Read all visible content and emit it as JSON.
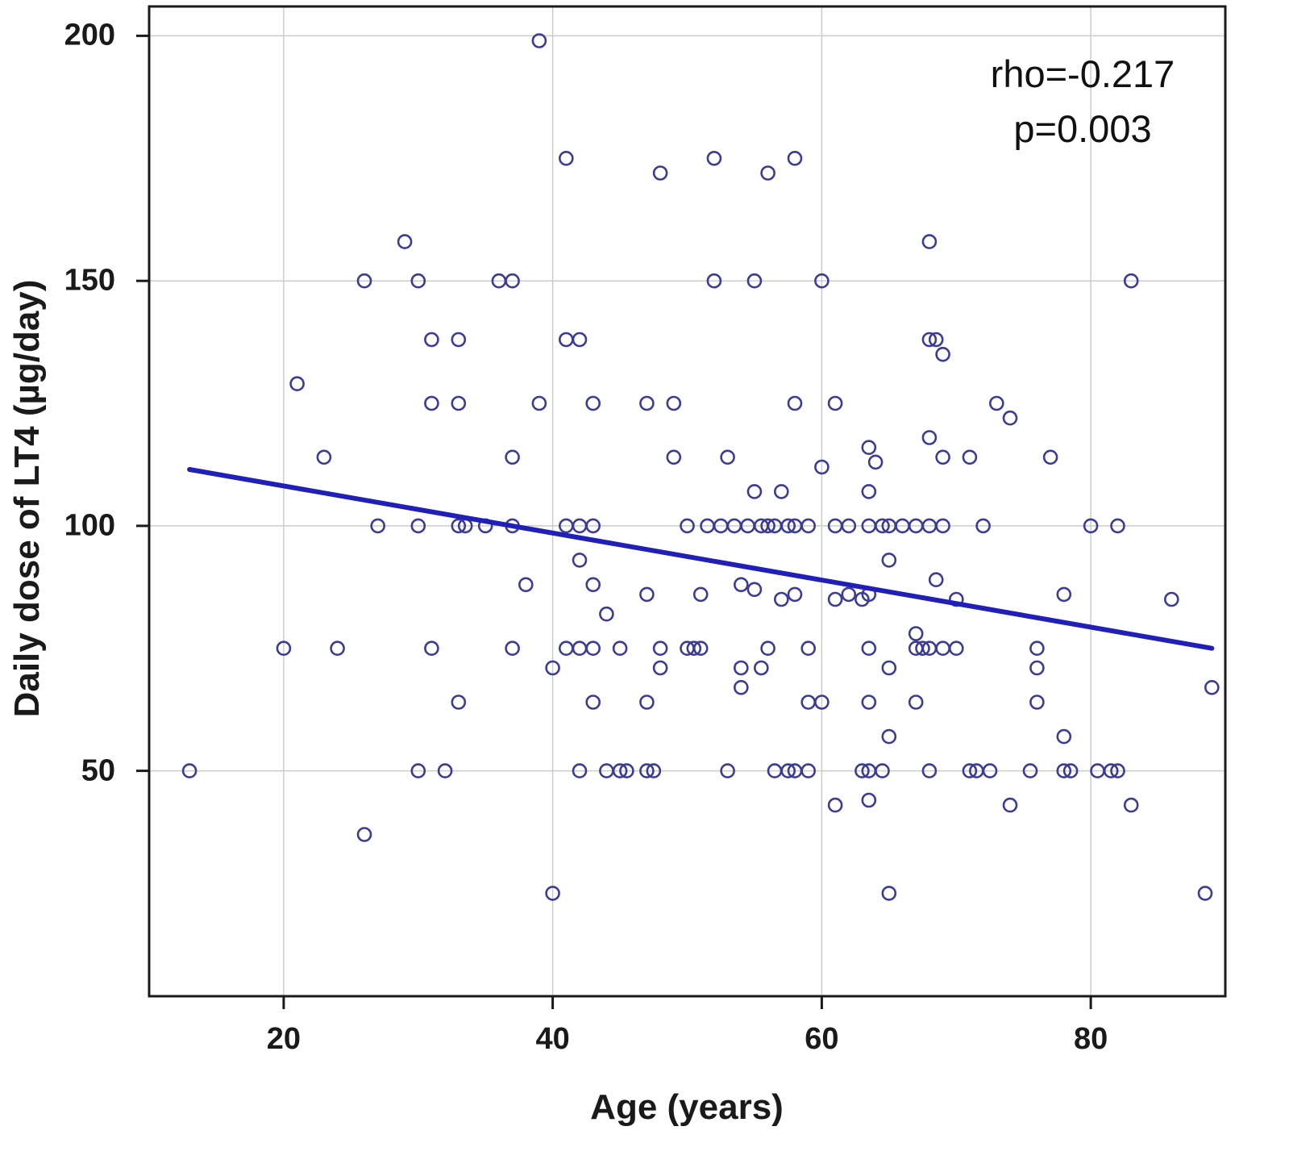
{
  "annotation": {
    "line1": "rho=-0.217",
    "line2": "p=0.003"
  },
  "chart_data": {
    "type": "scatter",
    "title": "",
    "xlabel": "Age (years)",
    "ylabel": "Daily dose of LT4 (µg/day)",
    "xlim": [
      10,
      90
    ],
    "ylim": [
      4,
      206
    ],
    "xticks": [
      20,
      40,
      60,
      80
    ],
    "yticks": [
      50,
      100,
      150,
      200
    ],
    "grid": true,
    "grid_color": "#cccccc",
    "point_color": "#3c3c94",
    "line_color": "#2020b8",
    "legend_position": "none",
    "trend": {
      "x": [
        13,
        89
      ],
      "y": [
        111.5,
        75
      ]
    },
    "points": [
      [
        39,
        199
      ],
      [
        41,
        175
      ],
      [
        52,
        175
      ],
      [
        58,
        175
      ],
      [
        48,
        172
      ],
      [
        56,
        172
      ],
      [
        29,
        158
      ],
      [
        68,
        158
      ],
      [
        26,
        150
      ],
      [
        30,
        150
      ],
      [
        36,
        150
      ],
      [
        37,
        150
      ],
      [
        52,
        150
      ],
      [
        55,
        150
      ],
      [
        60,
        150
      ],
      [
        83,
        150
      ],
      [
        31,
        138
      ],
      [
        33,
        138
      ],
      [
        41,
        138
      ],
      [
        42,
        138
      ],
      [
        68,
        138
      ],
      [
        68.5,
        138
      ],
      [
        69,
        135
      ],
      [
        21,
        129
      ],
      [
        31,
        125
      ],
      [
        33,
        125
      ],
      [
        39,
        125
      ],
      [
        43,
        125
      ],
      [
        47,
        125
      ],
      [
        49,
        125
      ],
      [
        58,
        125
      ],
      [
        61,
        125
      ],
      [
        73,
        125
      ],
      [
        74,
        122
      ],
      [
        68,
        118
      ],
      [
        23,
        114
      ],
      [
        37,
        114
      ],
      [
        49,
        114
      ],
      [
        53,
        114
      ],
      [
        63.5,
        116
      ],
      [
        64,
        113
      ],
      [
        69,
        114
      ],
      [
        71,
        114
      ],
      [
        77,
        114
      ],
      [
        60,
        112
      ],
      [
        55,
        107
      ],
      [
        57,
        107
      ],
      [
        63.5,
        107
      ],
      [
        27,
        100
      ],
      [
        30,
        100
      ],
      [
        33,
        100
      ],
      [
        33.5,
        100
      ],
      [
        35,
        100
      ],
      [
        37,
        100
      ],
      [
        41,
        100
      ],
      [
        42,
        100
      ],
      [
        43,
        100
      ],
      [
        50,
        100
      ],
      [
        51.5,
        100
      ],
      [
        52.5,
        100
      ],
      [
        53.5,
        100
      ],
      [
        54.5,
        100
      ],
      [
        55.5,
        100
      ],
      [
        56,
        100
      ],
      [
        56.5,
        100
      ],
      [
        57.5,
        100
      ],
      [
        58,
        100
      ],
      [
        59,
        100
      ],
      [
        61,
        100
      ],
      [
        62,
        100
      ],
      [
        63.5,
        100
      ],
      [
        64.5,
        100
      ],
      [
        65,
        100
      ],
      [
        66,
        100
      ],
      [
        67,
        100
      ],
      [
        68,
        100
      ],
      [
        69,
        100
      ],
      [
        72,
        100
      ],
      [
        80,
        100
      ],
      [
        82,
        100
      ],
      [
        42,
        93
      ],
      [
        65,
        93
      ],
      [
        38,
        88
      ],
      [
        43,
        88
      ],
      [
        54,
        88
      ],
      [
        55,
        87
      ],
      [
        68.5,
        89
      ],
      [
        47,
        86
      ],
      [
        51,
        86
      ],
      [
        57,
        85
      ],
      [
        58,
        86
      ],
      [
        61,
        85
      ],
      [
        62,
        86
      ],
      [
        63,
        85
      ],
      [
        63.5,
        86
      ],
      [
        70,
        85
      ],
      [
        78,
        86
      ],
      [
        86,
        85
      ],
      [
        44,
        82
      ],
      [
        67,
        78
      ],
      [
        20,
        75
      ],
      [
        24,
        75
      ],
      [
        31,
        75
      ],
      [
        37,
        75
      ],
      [
        41,
        75
      ],
      [
        42,
        75
      ],
      [
        43,
        75
      ],
      [
        45,
        75
      ],
      [
        48,
        75
      ],
      [
        50,
        75
      ],
      [
        50.5,
        75
      ],
      [
        51,
        75
      ],
      [
        56,
        75
      ],
      [
        59,
        75
      ],
      [
        63.5,
        75
      ],
      [
        67,
        75
      ],
      [
        67.5,
        75
      ],
      [
        68,
        75
      ],
      [
        69,
        75
      ],
      [
        70,
        75
      ],
      [
        76,
        75
      ],
      [
        40,
        71
      ],
      [
        48,
        71
      ],
      [
        54,
        71
      ],
      [
        55.5,
        71
      ],
      [
        65,
        71
      ],
      [
        76,
        71
      ],
      [
        54,
        67
      ],
      [
        89,
        67
      ],
      [
        33,
        64
      ],
      [
        43,
        64
      ],
      [
        47,
        64
      ],
      [
        59,
        64
      ],
      [
        60,
        64
      ],
      [
        63.5,
        64
      ],
      [
        67,
        64
      ],
      [
        76,
        64
      ],
      [
        65,
        57
      ],
      [
        78,
        57
      ],
      [
        13,
        50
      ],
      [
        30,
        50
      ],
      [
        32,
        50
      ],
      [
        42,
        50
      ],
      [
        44,
        50
      ],
      [
        45,
        50
      ],
      [
        45.5,
        50
      ],
      [
        47,
        50
      ],
      [
        47.5,
        50
      ],
      [
        53,
        50
      ],
      [
        56.5,
        50
      ],
      [
        57.5,
        50
      ],
      [
        58,
        50
      ],
      [
        59,
        50
      ],
      [
        63,
        50
      ],
      [
        63.5,
        50
      ],
      [
        64.5,
        50
      ],
      [
        68,
        50
      ],
      [
        71,
        50
      ],
      [
        71.5,
        50
      ],
      [
        72.5,
        50
      ],
      [
        75.5,
        50
      ],
      [
        78,
        50
      ],
      [
        78.5,
        50
      ],
      [
        80.5,
        50
      ],
      [
        81.5,
        50
      ],
      [
        82,
        50
      ],
      [
        61,
        43
      ],
      [
        63.5,
        44
      ],
      [
        74,
        43
      ],
      [
        83,
        43
      ],
      [
        26,
        37
      ],
      [
        40,
        25
      ],
      [
        65,
        25
      ],
      [
        88.5,
        25
      ]
    ]
  }
}
